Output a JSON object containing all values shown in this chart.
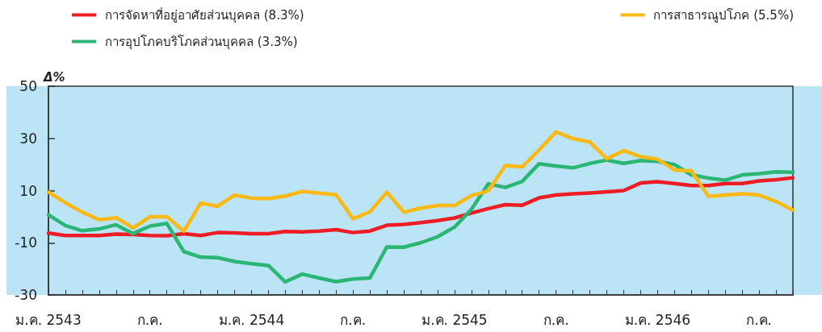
{
  "chart_data": {
    "type": "line",
    "ylabel": "Δ%",
    "categories": [
      "ม.ค. 2543",
      null,
      null,
      null,
      null,
      null,
      "ก.ค.",
      null,
      null,
      null,
      null,
      null,
      "ม.ค. 2544",
      null,
      null,
      null,
      null,
      null,
      "ก.ค.",
      null,
      null,
      null,
      null,
      null,
      "ม.ค. 2545",
      null,
      null,
      null,
      null,
      null,
      "ก.ค.",
      null,
      null,
      null,
      null,
      null,
      "ม.ค. 2546",
      null,
      null,
      null,
      null,
      null,
      "ก.ค.",
      null,
      null
    ],
    "series": [
      {
        "name": "การจัดหาที่อยู่อาศัยส่วนบุคคล (8.3%)",
        "color": "#ee1c25",
        "values": [
          -6.3,
          -7.2,
          -7.2,
          -7.2,
          -6.7,
          -6.8,
          -7.2,
          -7.3,
          -6.5,
          -7.2,
          -6.1,
          -6.2,
          -6.5,
          -6.5,
          -5.7,
          -5.8,
          -5.5,
          -5,
          -6.1,
          -5.5,
          -3.3,
          -3,
          -2.3,
          -1.5,
          -0.5,
          1.4,
          3.1,
          4.6,
          4.4,
          7.2,
          8.3,
          8.8,
          9.1,
          9.5,
          10,
          12.9,
          13.4,
          12.7,
          11.9,
          11.9,
          12.7,
          12.7,
          13.7,
          14.2,
          14.9
        ]
      },
      {
        "name": "การอุปโภคบริโภคส่วนบุคคล (3.3%)",
        "color": "#2bb673",
        "values": [
          0.7,
          -3.4,
          -5.4,
          -4.7,
          -3.1,
          -6.5,
          -3.6,
          -2.6,
          -13.4,
          -15.5,
          -15.7,
          -17.2,
          -18,
          -18.7,
          -25,
          -22,
          -23.5,
          -24.9,
          -23.9,
          -23.5,
          -11.6,
          -11.7,
          -10,
          -7.7,
          -4,
          2.8,
          12.6,
          11.2,
          13.5,
          20.3,
          19.4,
          18.7,
          20.4,
          21.7,
          20.4,
          21.5,
          21.2,
          20,
          16,
          14.8,
          14,
          16,
          16.5,
          17.2,
          17
        ]
      },
      {
        "name": "การสาธารณูปโภค (5.5%)",
        "color": "#fdb913",
        "values": [
          9.4,
          5.3,
          1.7,
          -1.2,
          -0.4,
          -4.3,
          0,
          0,
          -5.6,
          5.2,
          4,
          8.3,
          7.1,
          6.9,
          7.9,
          9.7,
          9,
          8.4,
          -0.8,
          1.9,
          9.4,
          1.7,
          3.3,
          4.3,
          4.3,
          8.1,
          9.9,
          19.6,
          19.1,
          25.6,
          32.5,
          29.9,
          28.6,
          22.2,
          25.3,
          23,
          22,
          17.9,
          17.6,
          7.8,
          8.3,
          8.8,
          8.3,
          5.8,
          2.5
        ]
      }
    ],
    "ylim": [
      -30,
      50
    ],
    "yticks": [
      50,
      30,
      10,
      -10,
      -30
    ],
    "grid": false,
    "legend": "top",
    "marker": "none",
    "line_style": "solid"
  }
}
